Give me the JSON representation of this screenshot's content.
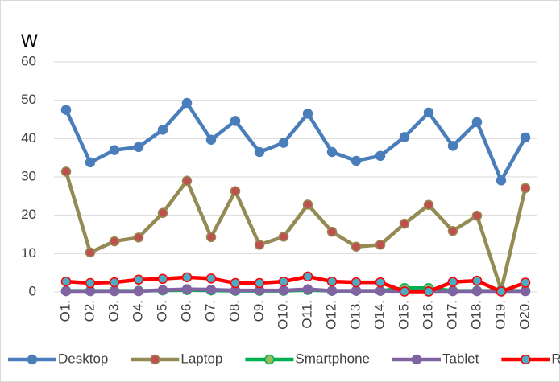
{
  "chart_data": {
    "type": "line",
    "y_label": "W",
    "categories": [
      "O1.",
      "O2.",
      "O3.",
      "O4.",
      "O5.",
      "O6.",
      "O7.",
      "O8.",
      "O9.",
      "O10.",
      "O11.",
      "O12.",
      "O13.",
      "O14.",
      "O15.",
      "O16.",
      "O17.",
      "O18.",
      "O19.",
      "O20."
    ],
    "ylim": [
      0,
      60
    ],
    "yticks": [
      0,
      10,
      20,
      30,
      40,
      50,
      60
    ],
    "grid": true,
    "legend": "bottom",
    "series": [
      {
        "name": "Desktop",
        "color": "#4a7ebb",
        "marker_color": "#4a7ebb",
        "values": [
          47.5,
          33.8,
          37,
          37.8,
          42.3,
          49.3,
          39.7,
          44.6,
          36.5,
          38.9,
          46.5,
          36.5,
          34.2,
          35.5,
          40.4,
          46.8,
          38.1,
          44.3,
          29.1,
          40.3
        ]
      },
      {
        "name": "Laptop",
        "color": "#948a54",
        "marker_color": "#c0504d",
        "values": [
          31.4,
          10.3,
          13.2,
          14.2,
          20.6,
          29,
          14.3,
          26.3,
          12.3,
          14.4,
          22.8,
          15.7,
          11.8,
          12.3,
          17.8,
          22.7,
          15.9,
          19.9,
          0.5,
          27.1
        ]
      },
      {
        "name": "Smartphone",
        "color": "#00b050",
        "marker_color": "#9bbb59",
        "values": [
          0.3,
          0.3,
          0.3,
          0.3,
          0.4,
          0.5,
          0.4,
          0.3,
          0.3,
          0.3,
          0.5,
          0.3,
          0.3,
          0.3,
          1,
          1,
          0.3,
          0.3,
          0.3,
          0.3
        ]
      },
      {
        "name": "Tablet",
        "color": "#8064a2",
        "marker_color": "#8064a2",
        "values": [
          0.2,
          0.2,
          0.2,
          0.2,
          0.5,
          0.7,
          0.6,
          0.4,
          0.4,
          0.4,
          0.7,
          0.3,
          0.3,
          0.3,
          0.2,
          0.2,
          0.2,
          0.2,
          0.2,
          0.2
        ]
      },
      {
        "name": "RPi",
        "color": "#ff0000",
        "marker_color": "#4bacc6",
        "values": [
          2.7,
          2.3,
          2.5,
          3.2,
          3.4,
          3.8,
          3.5,
          2.3,
          2.3,
          2.7,
          4,
          2.7,
          2.5,
          2.5,
          0.1,
          0.1,
          2.6,
          2.9,
          0.1,
          2.4
        ]
      }
    ]
  }
}
